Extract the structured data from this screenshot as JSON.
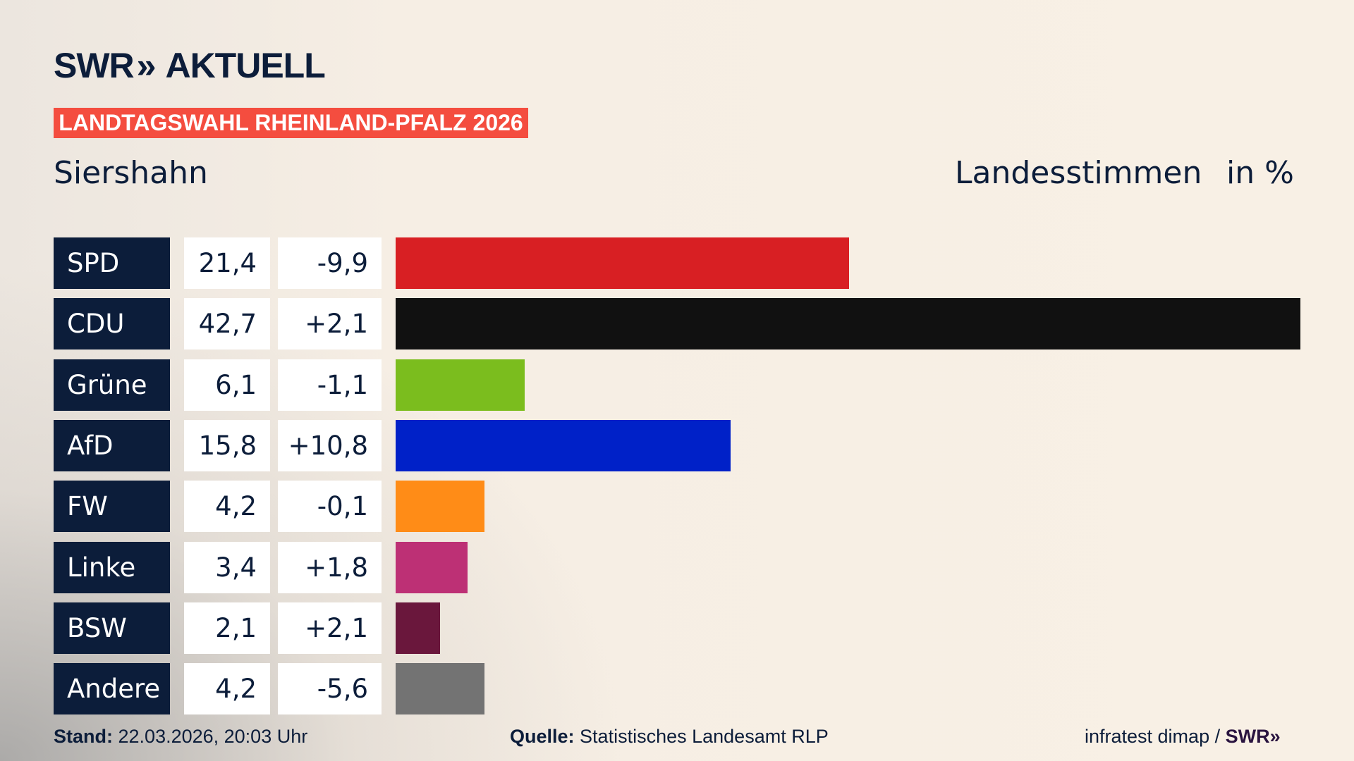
{
  "header": {
    "logo": "SWR AKTUELL",
    "logo_parts": {
      "swr": "SWR",
      "aktuell": "AKTUELL"
    },
    "election_badge": "LANDTAGSWAHL RHEINLAND-PFALZ 2026",
    "place": "Siershahn",
    "vote_type": "Landesstimmen",
    "unit": "in %"
  },
  "chart_data": {
    "type": "bar",
    "orientation": "horizontal",
    "categories": [
      "SPD",
      "CDU",
      "Grüne",
      "AfD",
      "FW",
      "Linke",
      "BSW",
      "Andere"
    ],
    "values": [
      21.4,
      42.7,
      6.1,
      15.8,
      4.2,
      3.4,
      2.1,
      4.2
    ],
    "values_label": [
      "21,4",
      "42,7",
      "6,1",
      "15,8",
      "4,2",
      "3,4",
      "2,1",
      "4,2"
    ],
    "changes": [
      -9.9,
      2.1,
      -1.1,
      10.8,
      -0.1,
      1.8,
      2.1,
      -5.6
    ],
    "changes_label": [
      "-9,9",
      "+2,1",
      "-1,1",
      "+10,8",
      "-0,1",
      "+1,8",
      "+2,1",
      "-5,6"
    ],
    "colors": [
      "#d81f23",
      "#111111",
      "#7bbd1e",
      "#0021c8",
      "#ff8c17",
      "#bd3075",
      "#6a173c",
      "#737373"
    ],
    "unit": "%",
    "xlim": [
      0,
      42.7
    ],
    "grid": false
  },
  "footer": {
    "stand_label": "Stand:",
    "stand_value": "22.03.2026, 20:03 Uhr",
    "source_label": "Quelle:",
    "source_value": "Statistisches Landesamt RLP",
    "credit": "infratest dimap /",
    "credit_logo": "SWR"
  }
}
